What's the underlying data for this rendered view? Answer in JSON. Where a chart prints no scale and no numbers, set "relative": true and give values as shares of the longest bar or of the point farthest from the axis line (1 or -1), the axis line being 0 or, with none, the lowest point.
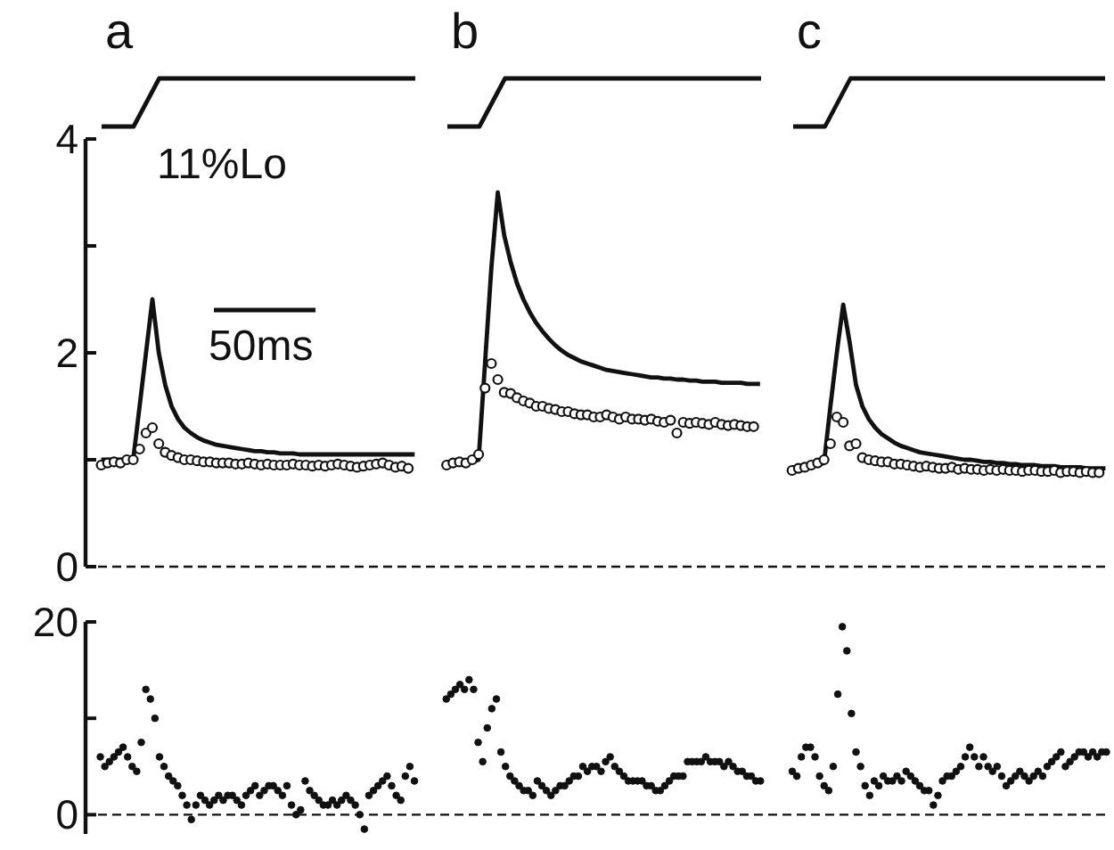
{
  "chart_data": [
    {
      "type": "line",
      "title": "a",
      "relative": true,
      "categories": [
        null,
        null,
        null,
        null,
        null,
        null,
        null,
        null,
        null,
        null,
        null,
        null,
        null,
        null,
        null,
        null,
        null,
        null,
        null,
        null,
        null,
        null,
        null,
        null,
        null,
        null,
        null,
        null,
        null,
        null,
        null,
        null,
        null,
        null,
        null,
        null,
        null,
        null,
        null,
        null,
        null,
        null,
        null,
        null,
        null,
        null,
        null,
        null,
        null,
        null
      ],
      "series": [
        {
          "color": "#111111",
          "values": [
            0,
            0,
            0,
            0,
            0,
            0,
            0.25,
            0.5,
            0.75,
            1,
            1,
            1,
            1,
            1,
            1,
            1,
            1,
            1,
            1,
            1,
            1,
            1,
            1,
            1,
            1,
            1,
            1,
            1,
            1,
            1,
            1,
            1,
            1,
            1,
            1,
            1,
            1,
            1,
            1,
            1,
            1,
            1,
            1,
            1,
            1,
            1,
            1,
            1,
            1,
            1
          ]
        }
      ]
    },
    {
      "type": "line",
      "title": "b",
      "relative": true,
      "categories": [
        null,
        null,
        null,
        null,
        null,
        null,
        null,
        null,
        null,
        null,
        null,
        null,
        null,
        null,
        null,
        null,
        null,
        null,
        null,
        null,
        null,
        null,
        null,
        null,
        null,
        null,
        null,
        null,
        null,
        null,
        null,
        null,
        null,
        null,
        null,
        null,
        null,
        null,
        null,
        null,
        null,
        null,
        null,
        null,
        null,
        null,
        null,
        null,
        null,
        null
      ],
      "series": [
        {
          "color": "#111111",
          "values": [
            0,
            0,
            0,
            0,
            0,
            0,
            0.25,
            0.5,
            0.75,
            1,
            1,
            1,
            1,
            1,
            1,
            1,
            1,
            1,
            1,
            1,
            1,
            1,
            1,
            1,
            1,
            1,
            1,
            1,
            1,
            1,
            1,
            1,
            1,
            1,
            1,
            1,
            1,
            1,
            1,
            1,
            1,
            1,
            1,
            1,
            1,
            1,
            1,
            1,
            1,
            1
          ]
        }
      ]
    },
    {
      "type": "line",
      "title": "c",
      "relative": true,
      "categories": [
        null,
        null,
        null,
        null,
        null,
        null,
        null,
        null,
        null,
        null,
        null,
        null,
        null,
        null,
        null,
        null,
        null,
        null,
        null,
        null,
        null,
        null,
        null,
        null,
        null,
        null,
        null,
        null,
        null,
        null,
        null,
        null,
        null,
        null,
        null,
        null,
        null,
        null,
        null,
        null,
        null,
        null,
        null,
        null,
        null,
        null,
        null,
        null,
        null,
        null
      ],
      "series": [
        {
          "color": "#111111",
          "values": [
            0,
            0,
            0,
            0,
            0,
            0,
            0.25,
            0.5,
            0.75,
            1,
            1,
            1,
            1,
            1,
            1,
            1,
            1,
            1,
            1,
            1,
            1,
            1,
            1,
            1,
            1,
            1,
            1,
            1,
            1,
            1,
            1,
            1,
            1,
            1,
            1,
            1,
            1,
            1,
            1,
            1,
            1,
            1,
            1,
            1,
            1,
            1,
            1,
            1,
            1,
            1
          ]
        }
      ]
    },
    {
      "type": "line",
      "annotations": [
        "11%Lo",
        "50ms"
      ],
      "ylim": [
        0,
        4
      ],
      "yticks": [
        0,
        {
          "value": 1,
          "label": null
        },
        2,
        {
          "value": 3,
          "label": null
        },
        4
      ],
      "ref_lines": [
        {
          "axis": "y",
          "value": 0,
          "line_style": "dashed"
        }
      ],
      "categories": [
        null,
        null,
        null,
        null,
        null,
        null,
        null,
        null,
        null,
        null,
        null,
        null,
        null,
        null,
        null,
        null,
        null,
        null,
        null,
        null,
        null,
        null,
        null,
        null,
        null,
        null,
        null,
        null,
        null,
        null,
        null,
        null,
        null,
        null,
        null,
        null,
        null,
        null,
        null,
        null,
        null,
        null,
        null,
        null,
        null,
        null,
        null,
        null,
        null,
        null,
        null,
        null,
        null,
        null,
        null,
        null,
        null,
        null,
        null,
        null,
        null,
        null,
        null,
        null,
        null,
        null,
        null,
        null,
        null,
        null,
        null,
        null,
        null,
        null,
        null,
        null,
        null,
        null,
        null,
        null,
        null,
        null,
        null,
        null,
        null,
        null,
        null,
        null,
        null,
        null,
        null,
        null,
        null,
        null,
        null,
        null,
        null,
        null,
        null,
        null,
        null,
        null,
        null,
        null,
        null,
        null,
        null,
        null,
        null,
        null,
        null,
        null,
        null,
        null,
        null,
        null,
        null,
        null,
        null,
        null,
        null,
        null,
        null,
        null,
        null,
        null,
        null,
        null,
        null,
        null,
        null,
        null,
        null,
        null,
        null,
        null,
        null,
        null,
        null,
        null,
        null,
        null,
        null,
        null,
        null,
        null,
        null,
        null,
        null,
        null,
        null,
        null,
        null,
        null,
        null,
        null,
        null,
        null
      ],
      "series": [
        {
          "type": "line",
          "color": "#111111",
          "values": [
            1,
            1,
            1,
            1,
            1,
            1,
            1.5,
            2,
            2.5,
            2,
            1.7,
            1.5,
            1.38,
            1.3,
            1.25,
            1.21,
            1.18,
            1.16,
            1.14,
            1.13,
            1.12,
            1.11,
            1.1,
            1.09,
            1.08,
            1.08,
            1.07,
            1.07,
            1.06,
            1.06,
            1.06,
            1.05,
            1.05,
            1.05,
            1.05,
            1.05,
            1.05,
            1.05,
            1.05,
            1.05,
            1.05,
            1.05,
            1.05,
            1.05,
            1.05,
            1.05,
            1.05,
            1.05,
            1.05,
            1.05,
            null,
            null,
            null,
            null,
            0.98,
            0.98,
            0.98,
            0.98,
            0.98,
            1,
            1.9,
            2.8,
            3.5,
            3.1,
            2.85,
            2.65,
            2.5,
            2.38,
            2.28,
            2.2,
            2.13,
            2.07,
            2.02,
            1.98,
            1.95,
            1.92,
            1.9,
            1.88,
            1.86,
            1.84,
            1.83,
            1.82,
            1.81,
            1.8,
            1.79,
            1.78,
            1.77,
            1.77,
            1.76,
            1.76,
            1.75,
            1.75,
            1.74,
            1.74,
            1.73,
            1.73,
            1.73,
            1.72,
            1.72,
            1.72,
            1.72,
            1.71,
            1.71,
            1.71,
            null,
            null,
            null,
            null,
            0.93,
            0.93,
            0.94,
            0.94,
            0.95,
            0.97,
            1.5,
            2,
            2.45,
            2.1,
            1.7,
            1.5,
            1.38,
            1.3,
            1.24,
            1.2,
            1.16,
            1.13,
            1.11,
            1.09,
            1.07,
            1.06,
            1.05,
            1.04,
            1.03,
            1.02,
            1.01,
            1,
            1,
            0.99,
            0.98,
            0.98,
            0.97,
            0.97,
            0.96,
            0.96,
            0.95,
            0.95,
            0.95,
            0.94,
            0.94,
            0.94,
            0.93,
            0.93,
            0.93,
            0.93,
            0.92,
            0.92,
            0.92,
            0.92
          ]
        },
        {
          "type": "scatter",
          "marker": "circle",
          "color": "#111111",
          "values": [
            0.95,
            0.97,
            0.98,
            0.97,
            1,
            1,
            1.1,
            1.25,
            1.3,
            1.15,
            1.07,
            1.04,
            1.02,
            1,
            1,
            0.99,
            0.98,
            0.98,
            0.97,
            0.97,
            0.97,
            0.96,
            0.96,
            0.97,
            0.96,
            0.95,
            0.96,
            0.95,
            0.95,
            0.95,
            0.96,
            0.95,
            0.95,
            0.94,
            0.95,
            0.94,
            0.95,
            0.96,
            0.95,
            0.94,
            0.93,
            0.94,
            0.95,
            0.96,
            0.97,
            0.95,
            0.93,
            0.94,
            0.92,
            null,
            null,
            null,
            null,
            null,
            0.95,
            0.97,
            0.98,
            0.97,
            1,
            1.05,
            1.67,
            1.9,
            1.75,
            1.63,
            1.62,
            1.58,
            1.55,
            1.53,
            1.5,
            1.5,
            1.48,
            1.47,
            1.45,
            1.45,
            1.43,
            1.42,
            1.42,
            1.4,
            1.4,
            1.42,
            1.4,
            1.38,
            1.4,
            1.38,
            1.38,
            1.37,
            1.38,
            1.36,
            1.35,
            1.37,
            1.25,
            1.35,
            1.34,
            1.35,
            1.34,
            1.33,
            1.35,
            1.33,
            1.32,
            1.33,
            1.32,
            1.31,
            1.31,
            null,
            null,
            null,
            null,
            null,
            0.9,
            0.92,
            0.93,
            0.95,
            0.97,
            1,
            1.15,
            1.4,
            1.35,
            1.13,
            1.15,
            1.02,
            1,
            0.99,
            0.98,
            0.98,
            0.96,
            0.96,
            0.95,
            0.94,
            0.93,
            0.94,
            0.93,
            0.92,
            0.92,
            0.93,
            0.91,
            0.92,
            0.91,
            0.91,
            0.9,
            0.91,
            0.9,
            0.91,
            0.9,
            0.9,
            0.89,
            0.9,
            0.9,
            0.89,
            0.89,
            0.9,
            0.88,
            0.89,
            0.89,
            0.88,
            0.89,
            0.88,
            0.88,
            null
          ]
        }
      ]
    },
    {
      "type": "scatter",
      "marker": "circle",
      "ylim": [
        -2,
        20
      ],
      "yticks": [
        0,
        {
          "value": 10,
          "label": null
        },
        20
      ],
      "ref_lines": [
        {
          "axis": "y",
          "value": 0,
          "line_style": "dashed"
        }
      ],
      "categories": [
        null,
        null,
        null,
        null,
        null,
        null,
        null,
        null,
        null,
        null,
        null,
        null,
        null,
        null,
        null,
        null,
        null,
        null,
        null,
        null,
        null,
        null,
        null,
        null,
        null,
        null,
        null,
        null,
        null,
        null,
        null,
        null,
        null,
        null,
        null,
        null,
        null,
        null,
        null,
        null,
        null,
        null,
        null,
        null,
        null,
        null,
        null,
        null,
        null,
        null,
        null,
        null,
        null,
        null,
        null,
        null,
        null,
        null,
        null,
        null,
        null,
        null,
        null,
        null,
        null,
        null,
        null,
        null,
        null,
        null,
        null,
        null,
        null,
        null,
        null,
        null,
        null,
        null,
        null,
        null,
        null,
        null,
        null,
        null,
        null,
        null,
        null,
        null,
        null,
        null,
        null,
        null,
        null,
        null,
        null,
        null,
        null,
        null,
        null,
        null,
        null,
        null,
        null,
        null,
        null,
        null,
        null,
        null,
        null,
        null,
        null,
        null,
        null,
        null,
        null,
        null,
        null,
        null,
        null,
        null,
        null,
        null,
        null,
        null,
        null,
        null,
        null,
        null,
        null,
        null,
        null,
        null,
        null,
        null,
        null,
        null,
        null,
        null,
        null,
        null,
        null,
        null,
        null,
        null,
        null,
        null,
        null,
        null,
        null,
        null,
        null,
        null,
        null,
        null,
        null,
        null,
        null,
        null,
        null,
        null,
        null,
        null,
        null,
        null,
        null,
        null,
        null,
        null,
        null,
        null,
        null,
        null,
        null,
        null,
        null,
        null,
        null,
        null,
        null,
        null,
        null,
        null,
        null,
        null,
        null,
        null,
        null,
        null,
        null,
        null,
        null,
        null,
        null,
        null,
        null,
        null,
        null,
        null,
        null,
        null,
        null,
        null,
        null,
        null,
        null,
        null,
        null,
        null,
        null,
        null,
        null,
        null,
        null,
        null,
        null,
        null,
        null,
        null,
        null,
        null,
        null,
        null
      ],
      "series": [
        {
          "color": "#111111",
          "values": [
            6,
            5,
            5.5,
            6,
            6.5,
            7,
            6,
            5,
            4.5,
            7.5,
            13,
            12,
            10,
            6,
            5,
            4,
            3.5,
            3,
            2,
            1,
            -0.5,
            1,
            2,
            1.5,
            1,
            1.5,
            2,
            1.5,
            2,
            2,
            1.5,
            1,
            2,
            2.5,
            3,
            2,
            2.5,
            3,
            3,
            2.5,
            2,
            3,
            1,
            0,
            0.5,
            3.5,
            2.5,
            2,
            1.5,
            1,
            1,
            1.5,
            1,
            1.5,
            2,
            1.5,
            1,
            0,
            -1.5,
            2,
            2.5,
            3,
            3.5,
            4,
            3,
            2,
            1.5,
            4,
            5,
            3.5,
            null,
            null,
            null,
            null,
            null,
            null,
            12,
            12.5,
            13,
            13.5,
            13,
            14,
            13,
            7.5,
            5.5,
            9,
            11,
            12,
            6.5,
            5,
            4,
            3.5,
            3,
            2.5,
            2.5,
            2,
            3.5,
            3,
            2.5,
            2,
            2.5,
            3,
            3,
            3.5,
            4,
            4,
            5,
            4.5,
            5,
            5,
            4.5,
            5.5,
            6,
            5,
            4.5,
            4,
            3.5,
            3.5,
            3.5,
            3.5,
            3,
            3,
            2.5,
            2.5,
            3,
            3.5,
            4,
            4,
            4,
            5.5,
            5.5,
            5.5,
            5.5,
            6,
            5.5,
            5.5,
            5.5,
            5,
            5.5,
            5,
            4.5,
            4.5,
            4,
            4,
            3.5,
            3.5,
            null,
            null,
            null,
            null,
            null,
            null,
            4.5,
            4,
            6,
            7,
            7,
            6,
            4,
            3,
            2.5,
            5,
            12.5,
            19.5,
            17,
            10.5,
            6.5,
            5,
            3,
            2,
            3.5,
            3,
            4,
            3.5,
            3.5,
            4,
            3.5,
            4.5,
            4,
            3.5,
            3,
            2.5,
            2.5,
            1,
            2,
            3.5,
            4,
            4,
            4.5,
            5,
            6,
            7,
            6,
            5,
            6,
            5,
            4.5,
            5,
            4,
            3,
            3.5,
            4,
            4.5,
            4,
            3.5,
            4,
            4.5,
            4,
            5,
            5.5,
            6,
            6.5,
            5,
            5.5,
            6,
            6.5,
            6.5,
            6,
            6.5,
            6,
            6.5,
            6.5
          ]
        }
      ]
    }
  ]
}
